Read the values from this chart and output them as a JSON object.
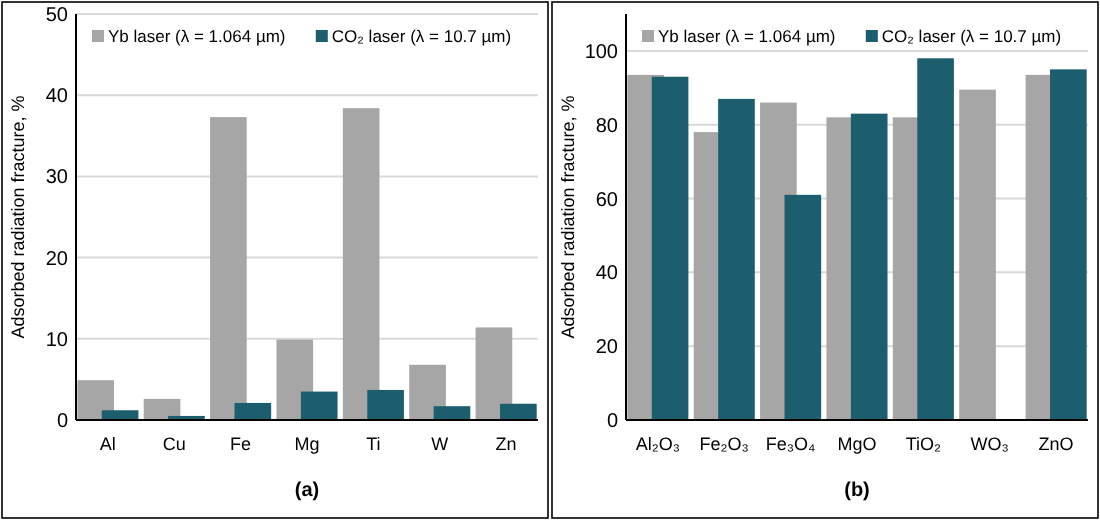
{
  "chart_data": [
    {
      "type": "bar",
      "categories": [
        "Al",
        "Cu",
        "Fe",
        "Mg",
        "Ti",
        "W",
        "Zn"
      ],
      "ylabel": "Adsorbed radiation fracture, %",
      "ylim": [
        0,
        50
      ],
      "yticks": [
        0,
        10,
        20,
        30,
        40,
        50
      ],
      "grid": "y",
      "legend": "top",
      "annotations": [
        "(a)"
      ],
      "series": [
        {
          "name": "Yb laser (λ = 1.064 µm)",
          "color": "#a6a6a6",
          "values": [
            4.9,
            2.6,
            37.3,
            9.9,
            38.4,
            6.8,
            11.4
          ]
        },
        {
          "name": "CO₂ laser (λ = 10.7 µm)",
          "color": "#1d5e6e",
          "values": [
            1.2,
            0.5,
            2.1,
            3.5,
            3.7,
            1.7,
            2.0
          ]
        }
      ]
    },
    {
      "type": "bar",
      "categories": [
        "Al₂O₃",
        "Fe₂O₃",
        "Fe₃O₄",
        "MgO",
        "TiO₂",
        "WO₃",
        "ZnO"
      ],
      "ylabel": "Adsorbed radiation fracture, %",
      "ylim": [
        0,
        110
      ],
      "yticks": [
        0,
        20,
        40,
        60,
        80,
        100
      ],
      "grid": "y",
      "legend": "top",
      "annotations": [
        "(b)"
      ],
      "series": [
        {
          "name": "Yb laser (λ = 1.064 µm)",
          "color": "#a6a6a6",
          "values": [
            93.5,
            78,
            86,
            82,
            82,
            89.5,
            93.5
          ]
        },
        {
          "name": "CO₂ laser (λ = 10.7 µm)",
          "color": "#1d5e6e",
          "values": [
            93,
            87,
            61,
            83,
            98,
            null,
            95
          ]
        }
      ]
    }
  ]
}
